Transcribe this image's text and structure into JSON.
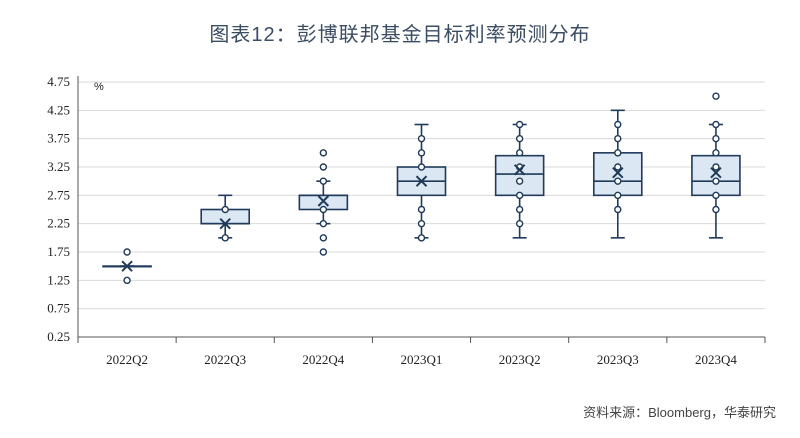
{
  "title": "图表12：彭博联邦基金目标利率预测分布",
  "source": "资料来源：Bloomberg，华泰研究",
  "chart_data": {
    "type": "box",
    "unit_label": "%",
    "ylim": [
      0.25,
      4.75
    ],
    "y_ticks": [
      "0.25",
      "0.75",
      "1.25",
      "1.75",
      "2.25",
      "2.75",
      "3.25",
      "3.75",
      "4.25",
      "4.75"
    ],
    "y_tick_values": [
      0.25,
      0.75,
      1.25,
      1.75,
      2.25,
      2.75,
      3.25,
      3.75,
      4.25,
      4.75
    ],
    "categories": [
      "2022Q2",
      "2022Q3",
      "2022Q4",
      "2023Q1",
      "2023Q2",
      "2023Q3",
      "2023Q4"
    ],
    "colors": {
      "box_fill": "#dbe7f3",
      "stroke": "#1f3a5a",
      "grid": "#d9d9d9",
      "axis": "#555555"
    },
    "boxes": [
      {
        "category": "2022Q2",
        "q1": 1.5,
        "median": 1.5,
        "q3": 1.5,
        "whisker_low": 1.5,
        "whisker_high": 1.5,
        "mean": 1.5,
        "outliers": [
          1.25,
          1.75
        ]
      },
      {
        "category": "2022Q3",
        "q1": 2.25,
        "median": 2.25,
        "q3": 2.5,
        "whisker_low": 2.0,
        "whisker_high": 2.75,
        "mean": 2.25,
        "outliers": [
          2.0,
          2.5
        ]
      },
      {
        "category": "2022Q4",
        "q1": 2.5,
        "median": 2.75,
        "q3": 2.75,
        "whisker_low": 2.25,
        "whisker_high": 3.0,
        "mean": 2.65,
        "outliers": [
          1.75,
          2.0,
          2.25,
          2.5,
          3.0,
          3.25,
          3.5
        ]
      },
      {
        "category": "2023Q1",
        "q1": 2.75,
        "median": 3.0,
        "q3": 3.25,
        "whisker_low": 2.0,
        "whisker_high": 4.0,
        "mean": 3.0,
        "outliers": [
          2.0,
          2.25,
          2.5,
          3.25,
          3.5,
          3.75
        ]
      },
      {
        "category": "2023Q2",
        "q1": 2.75,
        "median": 3.125,
        "q3": 3.45,
        "whisker_low": 2.0,
        "whisker_high": 4.0,
        "mean": 3.2,
        "outliers": [
          2.25,
          2.5,
          2.75,
          3.0,
          3.25,
          3.5,
          3.75,
          4.0
        ]
      },
      {
        "category": "2023Q3",
        "q1": 2.75,
        "median": 3.0,
        "q3": 3.5,
        "whisker_low": 2.0,
        "whisker_high": 4.25,
        "mean": 3.15,
        "outliers": [
          2.5,
          2.75,
          3.0,
          3.25,
          3.5,
          3.75,
          4.0
        ]
      },
      {
        "category": "2023Q4",
        "q1": 2.75,
        "median": 3.0,
        "q3": 3.45,
        "whisker_low": 2.0,
        "whisker_high": 4.0,
        "mean": 3.15,
        "outliers": [
          2.5,
          2.75,
          3.0,
          3.25,
          3.5,
          3.75,
          4.0,
          4.5
        ]
      }
    ]
  }
}
